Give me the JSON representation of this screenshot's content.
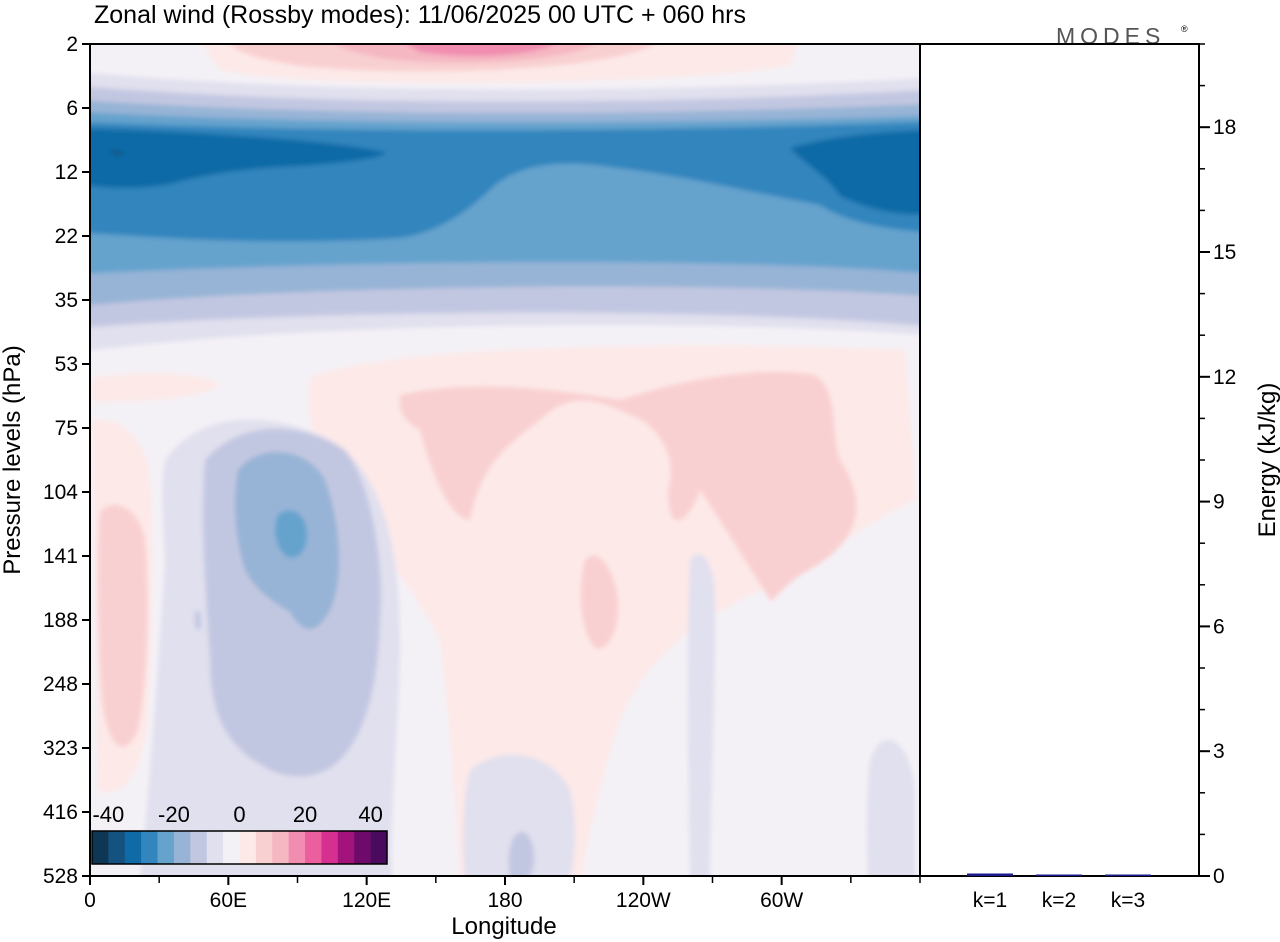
{
  "figure": {
    "title": "Zonal wind (Rossby modes):  11/06/2025  00 UTC  + 060 hrs",
    "logo_text": "MODES",
    "logo_mark": "®"
  },
  "chart_data": [
    {
      "type": "heatmap",
      "name": "zonal-wind-section",
      "xlabel": "Longitude",
      "ylabel": "Pressure levels (hPa)",
      "x_ticks": [
        {
          "lon": 0,
          "label": "0"
        },
        {
          "lon": 60,
          "label": "60E"
        },
        {
          "lon": 120,
          "label": "120E"
        },
        {
          "lon": 180,
          "label": "180"
        },
        {
          "lon": 240,
          "label": "120W"
        },
        {
          "lon": 300,
          "label": "60W"
        }
      ],
      "xlim": [
        0,
        360
      ],
      "y_levels": [
        "2",
        "6",
        "12",
        "22",
        "35",
        "53",
        "75",
        "104",
        "141",
        "188",
        "248",
        "323",
        "416",
        "528"
      ],
      "y_scale": "ordinal (one step per listed level)",
      "value_unit": "m/s",
      "colorbar": {
        "ticks": [
          "-40",
          "-20",
          "0",
          "20",
          "40"
        ],
        "range": [
          -45,
          45
        ],
        "step": 5,
        "colors": [
          "#0d3755",
          "#15527f",
          "#0f6aa6",
          "#3385bd",
          "#65a3cd",
          "#97b4d6",
          "#c2c7e1",
          "#e1e0ee",
          "#f4f1f6",
          "#fde9e8",
          "#f9d0d1",
          "#f5b7c2",
          "#f18db0",
          "#ec5f9f",
          "#d52f90",
          "#a3137c",
          "#6e0b6a",
          "#4a0a5e"
        ]
      },
      "field_description": "Easterlies of about -10 to -35 across 6-35 hPa (strongest -30 to -35 near 10-14 hPa at the dateline edges), westerlies up to about +15 to +20 near 2 hPa around 180; weak +5 regions across 160E-60W at 60-200 hPa; weak negative region of -5 to -15 near 80E at 90-250 hPa."
    },
    {
      "type": "bar",
      "name": "energy-per-wavenumber",
      "categories": [
        "k=1",
        "k=2",
        "k=3"
      ],
      "values": [
        0.06,
        0.03,
        0.02
      ],
      "ylabel": "Energy (kJ/kg)",
      "ylim": [
        0,
        20
      ],
      "y_ticks": [
        "0",
        "3",
        "6",
        "9",
        "12",
        "15",
        "18"
      ],
      "bar_color": "#1a1a8c"
    }
  ]
}
